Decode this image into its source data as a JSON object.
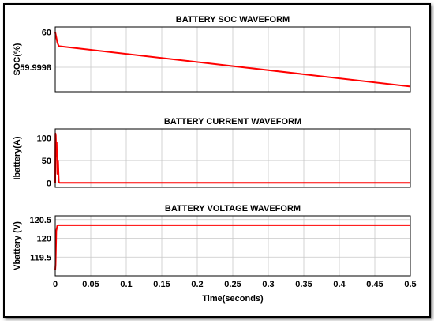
{
  "chart_data": [
    {
      "type": "line",
      "title": "BATTERY SOC WAVEFORM",
      "xlabel": "",
      "ylabel": "SOC(%)",
      "xlim": [
        0,
        0.5
      ],
      "ylim": [
        59.99966,
        60.00003
      ],
      "yticks": [
        60,
        59.9998
      ],
      "ytick_labels": [
        "60",
        "59.9998"
      ],
      "grid": true,
      "series": [
        {
          "color": "#ff0000",
          "x": [
            0,
            0.001,
            0.003,
            0.005,
            0.5
          ],
          "y": [
            60.0,
            59.99998,
            59.99994,
            59.99992,
            59.99969
          ]
        }
      ]
    },
    {
      "type": "line",
      "title": "BATTERY CURRENT WAVEFORM",
      "xlabel": "",
      "ylabel": "Ibattery(A)",
      "xlim": [
        0,
        0.5
      ],
      "ylim": [
        -10,
        120
      ],
      "yticks": [
        0,
        50,
        100
      ],
      "ytick_labels": [
        "0",
        "50",
        "100"
      ],
      "grid": true,
      "series": [
        {
          "color": "#ff0000",
          "x": [
            0,
            0.0003,
            0.0008,
            0.0015,
            0.002,
            0.003,
            0.004,
            0.005,
            0.006,
            0.5
          ],
          "y": [
            0,
            110,
            105,
            60,
            90,
            20,
            50,
            2,
            0,
            0
          ]
        }
      ]
    },
    {
      "type": "line",
      "title": "BATTERY VOLTAGE WAVEFORM",
      "xlabel": "Time(seconds)",
      "ylabel": "Vbattery (V)",
      "xlim": [
        0,
        0.5
      ],
      "ylim": [
        119.0,
        120.6
      ],
      "yticks": [
        119.5,
        120,
        120.5
      ],
      "ytick_labels": [
        "119.5",
        "120",
        "120.5"
      ],
      "xticks": [
        0,
        0.05,
        0.1,
        0.15,
        0.2,
        0.25,
        0.3,
        0.35,
        0.4,
        0.45,
        0.5
      ],
      "xtick_labels": [
        "0",
        "0.05",
        "0.1",
        "0.15",
        "0.2",
        "0.25",
        "0.3",
        "0.35",
        "0.4",
        "0.45",
        "0.5"
      ],
      "grid": true,
      "series": [
        {
          "color": "#ff0000",
          "x": [
            0,
            0.0005,
            0.0015,
            0.003,
            0.004,
            0.5
          ],
          "y": [
            119.15,
            119.3,
            120.2,
            120.34,
            120.35,
            120.35
          ]
        }
      ]
    }
  ]
}
